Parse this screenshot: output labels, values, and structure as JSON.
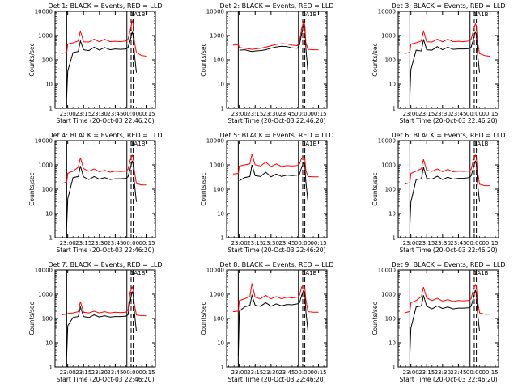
{
  "figure": {
    "type": "line",
    "yscale": "log",
    "ylim": [
      1,
      10000
    ],
    "ylabel": "Counts/sec",
    "xlabel": "Start Time (20-Oct-03 22:46:20)",
    "xtick_labels": [
      "23:00",
      "23:15",
      "23:30",
      "23:45",
      "00:00",
      "00:15"
    ],
    "ytick_labels": [
      "1",
      "10",
      "100",
      "1000",
      "10000"
    ],
    "colors": {
      "events": "#000000",
      "lld": "#ff0000",
      "axes": "#000000",
      "background": "#ffffff"
    },
    "marker_lines": {
      "solid_times": [
        "22:59",
        "23:56"
      ],
      "dashed_times": [
        "00:00",
        "00:02"
      ]
    }
  },
  "chart_data": [
    {
      "type": "line",
      "title": "Det 1: BLACK = Events, RED = LLD",
      "marker_label": "1A1B",
      "x": [
        "22:54",
        "22:58",
        "22:59",
        "23:00",
        "23:05",
        "23:10",
        "23:12",
        "23:15",
        "23:20",
        "23:25",
        "23:30",
        "23:35",
        "23:40",
        "23:45",
        "23:50",
        "23:55",
        "23:57",
        "23:59",
        "00:01",
        "00:02",
        "00:03",
        "00:05",
        "00:10",
        "00:15",
        "00:20"
      ],
      "series": [
        {
          "name": "Events",
          "values": [
            null,
            null,
            3,
            35,
            200,
            220,
            600,
            260,
            240,
            330,
            250,
            320,
            260,
            280,
            270,
            280,
            320,
            600,
            1400,
            1000,
            200,
            30,
            null,
            null,
            null
          ]
        },
        {
          "name": "LLD",
          "values": [
            180,
            200,
            200,
            450,
            500,
            600,
            1600,
            550,
            540,
            700,
            550,
            700,
            560,
            580,
            560,
            600,
            700,
            1500,
            4000,
            3000,
            600,
            200,
            150,
            140,
            null
          ]
        }
      ]
    },
    {
      "type": "line",
      "title": "Det 2: BLACK = Events, RED = LLD",
      "marker_label": "1A1B",
      "x": [
        "22:54",
        "22:58",
        "22:59",
        "23:00",
        "23:05",
        "23:10",
        "23:12",
        "23:15",
        "23:20",
        "23:25",
        "23:30",
        "23:35",
        "23:40",
        "23:45",
        "23:50",
        "23:55",
        "23:57",
        "23:59",
        "00:01",
        "00:02",
        "00:03",
        "00:05",
        "00:10",
        "00:15",
        "00:20"
      ],
      "series": [
        {
          "name": "Events",
          "values": [
            null,
            null,
            null,
            250,
            260,
            230,
            220,
            230,
            240,
            260,
            300,
            340,
            360,
            350,
            310,
            300,
            420,
            1200,
            3000,
            2000,
            300,
            30,
            null,
            null,
            null
          ]
        },
        {
          "name": "LLD",
          "values": [
            400,
            420,
            420,
            320,
            300,
            280,
            270,
            280,
            300,
            330,
            380,
            430,
            460,
            450,
            400,
            380,
            600,
            2000,
            4000,
            2500,
            500,
            270,
            260,
            260,
            null
          ]
        }
      ]
    },
    {
      "type": "line",
      "title": "Det 3: BLACK = Events, RED = LLD",
      "marker_label": "1A1B",
      "x": [
        "22:54",
        "22:58",
        "22:59",
        "23:00",
        "23:05",
        "23:10",
        "23:12",
        "23:15",
        "23:20",
        "23:25",
        "23:30",
        "23:35",
        "23:40",
        "23:45",
        "23:50",
        "23:55",
        "23:57",
        "23:59",
        "00:01",
        "00:02",
        "00:03",
        "00:05",
        "00:10",
        "00:15",
        "00:20"
      ],
      "series": [
        {
          "name": "Events",
          "values": [
            null,
            null,
            3,
            40,
            250,
            230,
            700,
            260,
            250,
            350,
            260,
            330,
            270,
            280,
            280,
            290,
            330,
            650,
            1500,
            1000,
            200,
            30,
            null,
            null,
            null
          ]
        },
        {
          "name": "LLD",
          "values": [
            180,
            200,
            200,
            450,
            500,
            600,
            1600,
            550,
            540,
            700,
            550,
            700,
            560,
            580,
            560,
            600,
            700,
            1500,
            3000,
            2500,
            600,
            180,
            150,
            140,
            null
          ]
        }
      ]
    },
    {
      "type": "line",
      "title": "Det 4: BLACK = Events, RED = LLD",
      "marker_label": "1A1B",
      "x": [
        "22:54",
        "22:58",
        "22:59",
        "23:00",
        "23:05",
        "23:10",
        "23:12",
        "23:15",
        "23:20",
        "23:25",
        "23:30",
        "23:35",
        "23:40",
        "23:45",
        "23:50",
        "23:55",
        "23:57",
        "23:59",
        "00:01",
        "00:02",
        "00:03",
        "00:05",
        "00:10",
        "00:15",
        "00:20"
      ],
      "series": [
        {
          "name": "Events",
          "values": [
            null,
            null,
            3,
            40,
            300,
            330,
            900,
            320,
            250,
            330,
            260,
            300,
            250,
            270,
            270,
            280,
            320,
            650,
            1500,
            1000,
            200,
            30,
            null,
            null,
            null
          ]
        },
        {
          "name": "LLD",
          "values": [
            170,
            190,
            190,
            450,
            550,
            800,
            2000,
            700,
            550,
            680,
            520,
            600,
            500,
            550,
            530,
            560,
            650,
            1500,
            2500,
            2000,
            600,
            170,
            150,
            150,
            null
          ]
        }
      ]
    },
    {
      "type": "line",
      "title": "Det 5: BLACK = Events, RED = LLD",
      "marker_label": "1A1B",
      "x": [
        "22:54",
        "22:58",
        "22:59",
        "23:00",
        "23:05",
        "23:10",
        "23:12",
        "23:15",
        "23:20",
        "23:25",
        "23:30",
        "23:35",
        "23:40",
        "23:45",
        "23:50",
        "23:55",
        "23:57",
        "23:59",
        "00:01",
        "00:02",
        "00:03",
        "00:05",
        "00:10",
        "00:15",
        "00:20"
      ],
      "series": [
        {
          "name": "Events",
          "values": [
            null,
            null,
            null,
            220,
            300,
            330,
            1000,
            360,
            330,
            500,
            320,
            420,
            330,
            380,
            360,
            380,
            420,
            800,
            1300,
            900,
            200,
            30,
            null,
            null,
            null
          ]
        },
        {
          "name": "LLD",
          "values": [
            420,
            440,
            440,
            900,
            1000,
            1100,
            2800,
            1000,
            900,
            1300,
            850,
            1100,
            850,
            950,
            900,
            950,
            1100,
            1900,
            2200,
            1800,
            600,
            330,
            320,
            320,
            null
          ]
        }
      ]
    },
    {
      "type": "line",
      "title": "Det 6: BLACK = Events, RED = LLD",
      "marker_label": "1A1B",
      "x": [
        "22:54",
        "22:58",
        "22:59",
        "23:00",
        "23:05",
        "23:10",
        "23:12",
        "23:15",
        "23:20",
        "23:25",
        "23:30",
        "23:35",
        "23:40",
        "23:45",
        "23:50",
        "23:55",
        "23:57",
        "23:59",
        "00:01",
        "00:02",
        "00:03",
        "00:05",
        "00:10",
        "00:15",
        "00:20"
      ],
      "series": [
        {
          "name": "Events",
          "values": [
            null,
            null,
            3,
            30,
            250,
            270,
            800,
            280,
            260,
            340,
            250,
            310,
            260,
            280,
            280,
            300,
            350,
            700,
            1500,
            1000,
            200,
            30,
            null,
            null,
            null
          ]
        },
        {
          "name": "LLD",
          "values": [
            160,
            180,
            180,
            450,
            550,
            700,
            1700,
            600,
            540,
            680,
            520,
            650,
            520,
            550,
            540,
            560,
            650,
            1500,
            2500,
            2000,
            600,
            160,
            140,
            140,
            null
          ]
        }
      ]
    },
    {
      "type": "line",
      "title": "Det 7: BLACK = Events, RED = LLD",
      "marker_label": "1A1B",
      "x": [
        "22:54",
        "22:58",
        "22:59",
        "23:00",
        "23:05",
        "23:10",
        "23:12",
        "23:15",
        "23:20",
        "23:25",
        "23:30",
        "23:35",
        "23:40",
        "23:45",
        "23:50",
        "23:55",
        "23:57",
        "23:59",
        "00:01",
        "00:02",
        "00:03",
        "00:05",
        "00:10",
        "00:15",
        "00:20"
      ],
      "series": [
        {
          "name": "Events",
          "values": [
            null,
            null,
            3,
            50,
            110,
            120,
            300,
            120,
            110,
            140,
            115,
            130,
            115,
            120,
            120,
            125,
            140,
            500,
            1300,
            900,
            200,
            30,
            null,
            null,
            null
          ]
        },
        {
          "name": "LLD",
          "values": [
            140,
            150,
            150,
            160,
            170,
            190,
            500,
            180,
            170,
            200,
            170,
            190,
            170,
            180,
            175,
            180,
            220,
            1200,
            2000,
            1500,
            400,
            140,
            130,
            130,
            null
          ]
        }
      ]
    },
    {
      "type": "line",
      "title": "Det 8: BLACK = Events, RED = LLD",
      "marker_label": "1A1B",
      "x": [
        "22:54",
        "22:58",
        "22:59",
        "23:00",
        "23:05",
        "23:10",
        "23:12",
        "23:15",
        "23:20",
        "23:25",
        "23:30",
        "23:35",
        "23:40",
        "23:45",
        "23:50",
        "23:55",
        "23:57",
        "23:59",
        "00:01",
        "00:02",
        "00:03",
        "00:05",
        "00:10",
        "00:15",
        "00:20"
      ],
      "series": [
        {
          "name": "Events",
          "values": [
            null,
            null,
            3,
            200,
            300,
            350,
            900,
            350,
            320,
            450,
            320,
            400,
            330,
            380,
            370,
            400,
            450,
            900,
            1500,
            1000,
            200,
            30,
            null,
            null,
            null
          ]
        },
        {
          "name": "LLD",
          "values": [
            190,
            200,
            200,
            550,
            650,
            800,
            2800,
            750,
            650,
            900,
            650,
            800,
            650,
            750,
            700,
            750,
            900,
            2000,
            2200,
            1800,
            600,
            190,
            180,
            180,
            null
          ]
        }
      ]
    },
    {
      "type": "line",
      "title": "Det 9: BLACK = Events, RED = LLD",
      "marker_label": "1A1B",
      "x": [
        "22:54",
        "22:58",
        "22:59",
        "23:00",
        "23:05",
        "23:10",
        "23:12",
        "23:15",
        "23:20",
        "23:25",
        "23:30",
        "23:35",
        "23:40",
        "23:45",
        "23:50",
        "23:55",
        "23:57",
        "23:59",
        "00:01",
        "00:02",
        "00:03",
        "00:05",
        "00:10",
        "00:15",
        "00:20"
      ],
      "series": [
        {
          "name": "Events",
          "values": [
            null,
            null,
            3,
            40,
            300,
            330,
            900,
            320,
            250,
            330,
            260,
            300,
            250,
            270,
            270,
            280,
            320,
            650,
            1500,
            1000,
            200,
            30,
            null,
            null,
            null
          ]
        },
        {
          "name": "LLD",
          "values": [
            170,
            190,
            190,
            450,
            550,
            800,
            2000,
            700,
            550,
            680,
            520,
            600,
            500,
            550,
            530,
            560,
            650,
            1500,
            2500,
            2000,
            600,
            170,
            150,
            150,
            null
          ]
        }
      ]
    }
  ]
}
